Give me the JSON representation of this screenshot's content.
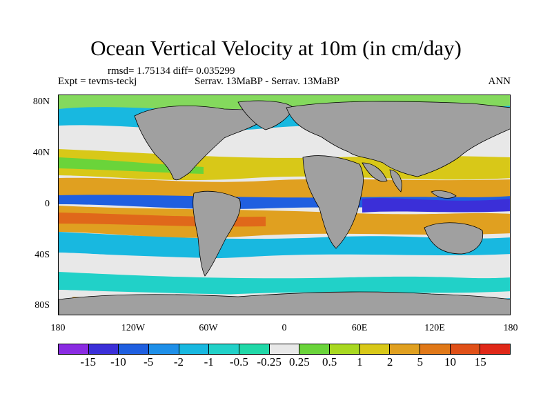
{
  "title": "Ocean Vertical Velocity at 10m (in cm/day)",
  "stats": "rmsd= 1.75134 diff= 0.035299",
  "left_label": "Expt = tevms-teckj",
  "center_label": "Serrav.  13MaBP - Serrav.  13MaBP",
  "right_label": "ANN",
  "lat_labels": [
    "80N",
    "40N",
    "0",
    "40S",
    "80S"
  ],
  "lon_labels": [
    "180",
    "120W",
    "60W",
    "0",
    "60E",
    "120E",
    "180"
  ],
  "colorbar": {
    "labels": [
      "-15",
      "-10",
      "-5",
      "-2",
      "-1",
      "-0.5",
      "-0.25",
      "0.25",
      "0.5",
      "1",
      "2",
      "5",
      "10",
      "15"
    ],
    "colors": [
      "#8a2be2",
      "#3b2fd8",
      "#1f5fe0",
      "#1e8fe8",
      "#18b8e0",
      "#21d1c8",
      "#20d8a8",
      "#e8e8e8",
      "#6ad43a",
      "#a8d820",
      "#d8c818",
      "#e0a020",
      "#e07818",
      "#e05018",
      "#e02818"
    ]
  },
  "map": {
    "land_color": "#a0a0a0",
    "ocean_base": "#e8e8e8"
  }
}
